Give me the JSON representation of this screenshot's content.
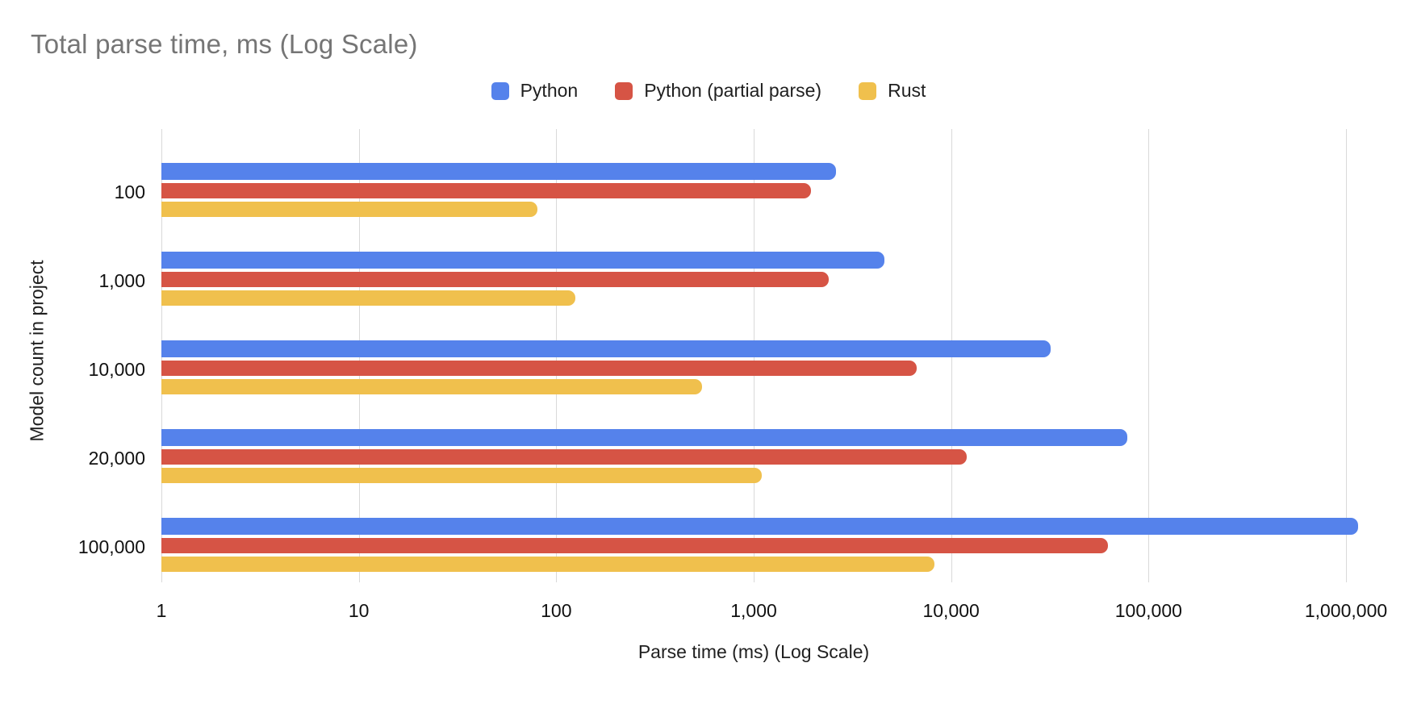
{
  "title": "Total parse time, ms (Log Scale)",
  "chart_data": {
    "type": "bar",
    "orientation": "horizontal",
    "x_scale": "log",
    "title": "Total parse time, ms (Log Scale)",
    "xlabel": "Parse time (ms) (Log Scale)",
    "ylabel": "Model count in project",
    "categories": [
      "100",
      "1,000",
      "10,000",
      "20,000",
      "100,000"
    ],
    "series": [
      {
        "name": "Python",
        "color": "#5582EB",
        "values": [
          2600,
          4600,
          32000,
          78000,
          1150000
        ]
      },
      {
        "name": "Python (partial parse)",
        "color": "#D65445",
        "values": [
          1950,
          2400,
          6700,
          12000,
          62000
        ]
      },
      {
        "name": "Rust",
        "color": "#F0C04D",
        "values": [
          80,
          125,
          550,
          1100,
          8200
        ]
      }
    ],
    "x_ticks": {
      "labels": [
        "1",
        "10",
        "100",
        "1,000",
        "10,000",
        "100,000",
        "1,000,000"
      ],
      "values": [
        1,
        10,
        100,
        1000,
        10000,
        100000,
        1000000
      ]
    },
    "xlim": [
      1,
      1000000
    ],
    "grid": "vertical",
    "legend_position": "top"
  },
  "colors": {
    "background": "#ffffff",
    "title_text": "#757575",
    "axis_text": "#1f1f1f",
    "gridline": "#d9d9d9"
  }
}
